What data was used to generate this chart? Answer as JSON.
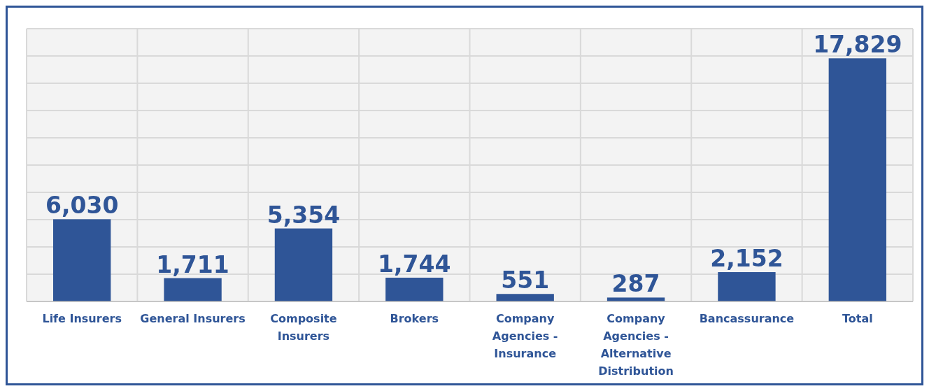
{
  "chart_data": {
    "type": "bar",
    "categories": [
      "Life Insurers",
      "General Insurers",
      "Composite Insurers",
      "Brokers",
      "Company Agencies - Insurance",
      "Company Agencies - Alternative Distribution",
      "Bancassurance",
      "Total"
    ],
    "values": [
      6030,
      1711,
      5354,
      1744,
      551,
      287,
      2152,
      17829
    ],
    "value_labels": [
      "6,030",
      "1,711",
      "5,354",
      "1,744",
      "551",
      "287",
      "2,152",
      "17,829"
    ],
    "color": "#2f5597",
    "grid": true,
    "tick_labels": "x",
    "ylim": [
      0,
      20000
    ],
    "yticks": [
      {
        "value": 0,
        "label": null
      },
      {
        "value": 2000,
        "label": null
      },
      {
        "value": 4000,
        "label": null
      },
      {
        "value": 6000,
        "label": null
      },
      {
        "value": 8000,
        "label": null
      },
      {
        "value": 10000,
        "label": null
      },
      {
        "value": 12000,
        "label": null
      },
      {
        "value": 14000,
        "label": null
      },
      {
        "value": 16000,
        "label": null
      },
      {
        "value": 18000,
        "label": null
      },
      {
        "value": 20000,
        "label": null
      }
    ]
  }
}
